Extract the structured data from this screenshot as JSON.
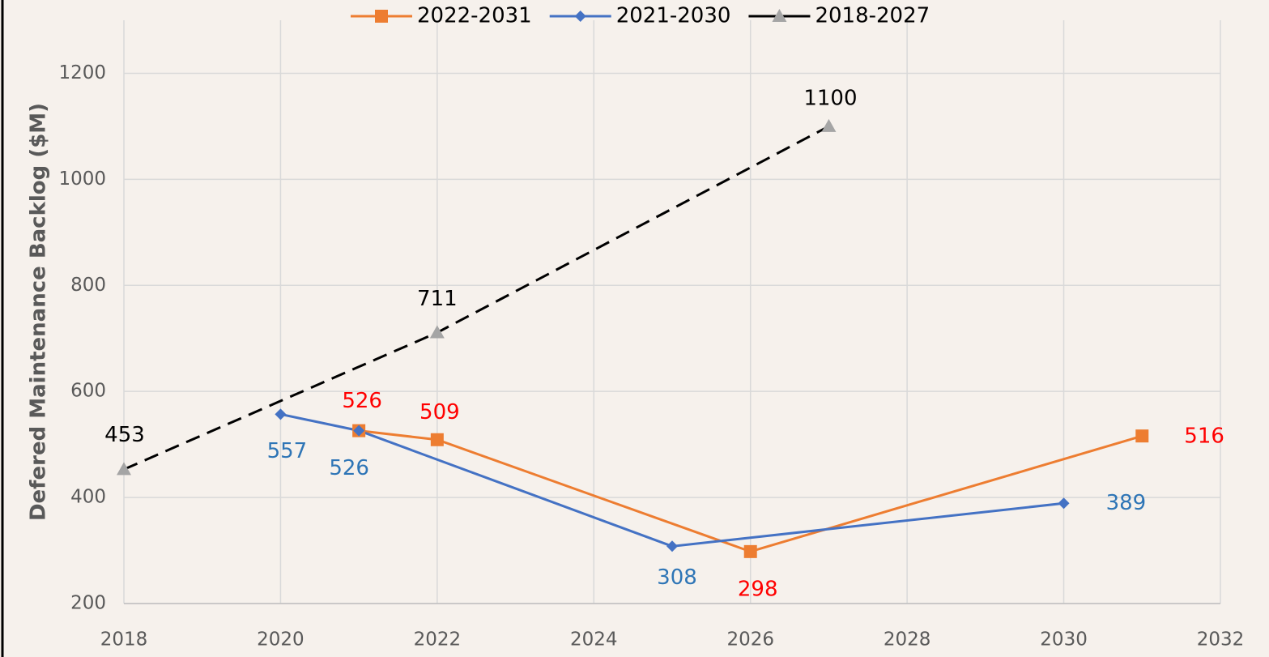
{
  "chart_data": {
    "type": "line",
    "y_label": "Defered Maintenance Backlog ($M)",
    "xlim": [
      2018,
      2032
    ],
    "xticks": [
      2018,
      2020,
      2022,
      2024,
      2026,
      2028,
      2030,
      2032
    ],
    "ylim": [
      200,
      1300
    ],
    "yticks": [
      200,
      400,
      600,
      800,
      1000,
      1200
    ],
    "grid": true,
    "legend": "top",
    "series": [
      {
        "name": "2022-2031",
        "color": "#ed7d31",
        "marker": "square",
        "marker_color": "#ed7d31",
        "label_color": "#ff0000",
        "dash": false,
        "x": [
          2021,
          2022,
          2026,
          2031
        ],
        "values": [
          526,
          509,
          298,
          516
        ]
      },
      {
        "name": "2021-2030",
        "color": "#4472c4",
        "marker": "diamond",
        "marker_color": "#4472c4",
        "label_color": "#2e75b6",
        "dash": false,
        "x": [
          2020,
          2021,
          2025,
          2030
        ],
        "values": [
          557,
          526,
          308,
          389
        ]
      },
      {
        "name": "2018-2027",
        "color": "#000000",
        "marker": "triangle",
        "marker_color": "#a5a5a5",
        "label_color": "#000000",
        "dash": true,
        "x": [
          2018,
          2022,
          2027
        ],
        "values": [
          453,
          711,
          1100
        ]
      }
    ]
  }
}
